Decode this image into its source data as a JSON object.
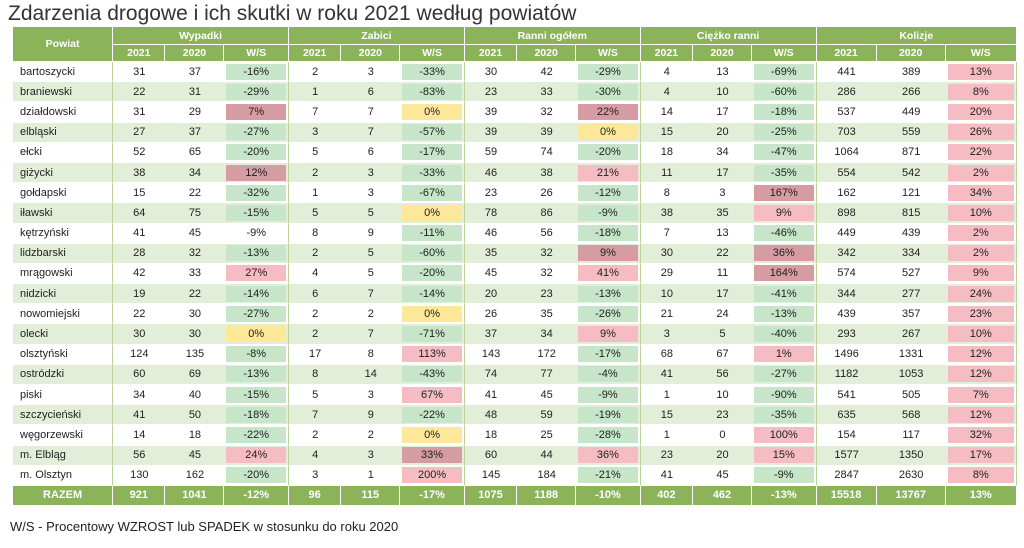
{
  "title": "Zdarzenia drogowe i ich skutki w roku 2021 według powiatów",
  "footnote": "W/S - Procentowy WZROST lub SPADEK w stosunku do roku 2020",
  "colors": {
    "header_green": "#8bb35a",
    "row_stripe": "#e2eed8",
    "decrease_green": "#c6e5c9",
    "increase_red": "#f6bcc4",
    "no_change_yellow": "#fde89a",
    "large_increase_red": "#d59da3"
  },
  "header": {
    "powiat": "Powiat",
    "groups": [
      "Wypadki",
      "Zabici",
      "Ranni ogółem",
      "Ciężko ranni",
      "Kolizje"
    ],
    "subheaders": [
      "2021",
      "2020",
      "W/S"
    ]
  },
  "rows": [
    {
      "name": "bartoszycki",
      "cells": [
        [
          "31",
          "37",
          "-16%",
          "g"
        ],
        [
          "2",
          "3",
          "-33%",
          "g"
        ],
        [
          "30",
          "42",
          "-29%",
          "g"
        ],
        [
          "4",
          "13",
          "-69%",
          "g"
        ],
        [
          "441",
          "389",
          "13%",
          "r"
        ]
      ]
    },
    {
      "name": "braniewski",
      "cells": [
        [
          "22",
          "31",
          "-29%",
          "g"
        ],
        [
          "1",
          "6",
          "-83%",
          "g"
        ],
        [
          "23",
          "33",
          "-30%",
          "g"
        ],
        [
          "4",
          "10",
          "-60%",
          "g"
        ],
        [
          "286",
          "266",
          "8%",
          "r"
        ]
      ]
    },
    {
      "name": "działdowski",
      "cells": [
        [
          "31",
          "29",
          "7%",
          "d"
        ],
        [
          "7",
          "7",
          "0%",
          "y"
        ],
        [
          "39",
          "32",
          "22%",
          "d"
        ],
        [
          "14",
          "17",
          "-18%",
          "g"
        ],
        [
          "537",
          "449",
          "20%",
          "r"
        ]
      ]
    },
    {
      "name": "elbląski",
      "cells": [
        [
          "27",
          "37",
          "-27%",
          "g"
        ],
        [
          "3",
          "7",
          "-57%",
          "g"
        ],
        [
          "39",
          "39",
          "0%",
          "y"
        ],
        [
          "15",
          "20",
          "-25%",
          "g"
        ],
        [
          "703",
          "559",
          "26%",
          "r"
        ]
      ]
    },
    {
      "name": "ełcki",
      "cells": [
        [
          "52",
          "65",
          "-20%",
          "g"
        ],
        [
          "5",
          "6",
          "-17%",
          "g"
        ],
        [
          "59",
          "74",
          "-20%",
          "g"
        ],
        [
          "18",
          "34",
          "-47%",
          "g"
        ],
        [
          "1064",
          "871",
          "22%",
          "r"
        ]
      ]
    },
    {
      "name": "giżycki",
      "cells": [
        [
          "38",
          "34",
          "12%",
          "d"
        ],
        [
          "2",
          "3",
          "-33%",
          "g"
        ],
        [
          "46",
          "38",
          "21%",
          "r"
        ],
        [
          "11",
          "17",
          "-35%",
          "g"
        ],
        [
          "554",
          "542",
          "2%",
          "r"
        ]
      ]
    },
    {
      "name": "gołdapski",
      "cells": [
        [
          "15",
          "22",
          "-32%",
          "g"
        ],
        [
          "1",
          "3",
          "-67%",
          "g"
        ],
        [
          "23",
          "26",
          "-12%",
          "g"
        ],
        [
          "8",
          "3",
          "167%",
          "d"
        ],
        [
          "162",
          "121",
          "34%",
          "r"
        ]
      ]
    },
    {
      "name": "iławski",
      "cells": [
        [
          "64",
          "75",
          "-15%",
          "g"
        ],
        [
          "5",
          "5",
          "0%",
          "y"
        ],
        [
          "78",
          "86",
          "-9%",
          "g"
        ],
        [
          "38",
          "35",
          "9%",
          "r"
        ],
        [
          "898",
          "815",
          "10%",
          "r"
        ]
      ]
    },
    {
      "name": "kętrzyński",
      "cells": [
        [
          "41",
          "45",
          "-9%",
          ""
        ],
        [
          "8",
          "9",
          "-11%",
          "g"
        ],
        [
          "46",
          "56",
          "-18%",
          "g"
        ],
        [
          "7",
          "13",
          "-46%",
          "g"
        ],
        [
          "449",
          "439",
          "2%",
          "r"
        ]
      ]
    },
    {
      "name": "lidzbarski",
      "cells": [
        [
          "28",
          "32",
          "-13%",
          "g"
        ],
        [
          "2",
          "5",
          "-60%",
          "g"
        ],
        [
          "35",
          "32",
          "9%",
          "d"
        ],
        [
          "30",
          "22",
          "36%",
          "d"
        ],
        [
          "342",
          "334",
          "2%",
          "r"
        ]
      ]
    },
    {
      "name": "mrągowski",
      "cells": [
        [
          "42",
          "33",
          "27%",
          "r"
        ],
        [
          "4",
          "5",
          "-20%",
          "g"
        ],
        [
          "45",
          "32",
          "41%",
          "r"
        ],
        [
          "29",
          "11",
          "164%",
          "d"
        ],
        [
          "574",
          "527",
          "9%",
          "r"
        ]
      ]
    },
    {
      "name": "nidzicki",
      "cells": [
        [
          "19",
          "22",
          "-14%",
          "g"
        ],
        [
          "6",
          "7",
          "-14%",
          "g"
        ],
        [
          "20",
          "23",
          "-13%",
          "g"
        ],
        [
          "10",
          "17",
          "-41%",
          "g"
        ],
        [
          "344",
          "277",
          "24%",
          "r"
        ]
      ]
    },
    {
      "name": "nowomiejski",
      "cells": [
        [
          "22",
          "30",
          "-27%",
          "g"
        ],
        [
          "2",
          "2",
          "0%",
          "y"
        ],
        [
          "26",
          "35",
          "-26%",
          "g"
        ],
        [
          "21",
          "24",
          "-13%",
          "g"
        ],
        [
          "439",
          "357",
          "23%",
          "r"
        ]
      ]
    },
    {
      "name": "olecki",
      "cells": [
        [
          "30",
          "30",
          "0%",
          "y"
        ],
        [
          "2",
          "7",
          "-71%",
          "g"
        ],
        [
          "37",
          "34",
          "9%",
          "r"
        ],
        [
          "3",
          "5",
          "-40%",
          "g"
        ],
        [
          "293",
          "267",
          "10%",
          "r"
        ]
      ]
    },
    {
      "name": "olsztyński",
      "cells": [
        [
          "124",
          "135",
          "-8%",
          "g"
        ],
        [
          "17",
          "8",
          "113%",
          "r"
        ],
        [
          "143",
          "172",
          "-17%",
          "g"
        ],
        [
          "68",
          "67",
          "1%",
          "r"
        ],
        [
          "1496",
          "1331",
          "12%",
          "r"
        ]
      ]
    },
    {
      "name": "ostródzki",
      "cells": [
        [
          "60",
          "69",
          "-13%",
          "g"
        ],
        [
          "8",
          "14",
          "-43%",
          "g"
        ],
        [
          "74",
          "77",
          "-4%",
          "g"
        ],
        [
          "41",
          "56",
          "-27%",
          "g"
        ],
        [
          "1182",
          "1053",
          "12%",
          "r"
        ]
      ]
    },
    {
      "name": "piski",
      "cells": [
        [
          "34",
          "40",
          "-15%",
          "g"
        ],
        [
          "5",
          "3",
          "67%",
          "r"
        ],
        [
          "41",
          "45",
          "-9%",
          "g"
        ],
        [
          "1",
          "10",
          "-90%",
          "g"
        ],
        [
          "541",
          "505",
          "7%",
          "r"
        ]
      ]
    },
    {
      "name": "szczycieński",
      "cells": [
        [
          "41",
          "50",
          "-18%",
          "g"
        ],
        [
          "7",
          "9",
          "-22%",
          "g"
        ],
        [
          "48",
          "59",
          "-19%",
          "g"
        ],
        [
          "15",
          "23",
          "-35%",
          "g"
        ],
        [
          "635",
          "568",
          "12%",
          "r"
        ]
      ]
    },
    {
      "name": "węgorzewski",
      "cells": [
        [
          "14",
          "18",
          "-22%",
          "g"
        ],
        [
          "2",
          "2",
          "0%",
          "y"
        ],
        [
          "18",
          "25",
          "-28%",
          "g"
        ],
        [
          "1",
          "0",
          "100%",
          "r"
        ],
        [
          "154",
          "117",
          "32%",
          "r"
        ]
      ]
    },
    {
      "name": "m. Elbląg",
      "cells": [
        [
          "56",
          "45",
          "24%",
          "r"
        ],
        [
          "4",
          "3",
          "33%",
          "d"
        ],
        [
          "60",
          "44",
          "36%",
          "r"
        ],
        [
          "23",
          "20",
          "15%",
          "r"
        ],
        [
          "1577",
          "1350",
          "17%",
          "r"
        ]
      ]
    },
    {
      "name": "m. Olsztyn",
      "cells": [
        [
          "130",
          "162",
          "-20%",
          "g"
        ],
        [
          "3",
          "1",
          "200%",
          "r"
        ],
        [
          "145",
          "184",
          "-21%",
          "g"
        ],
        [
          "41",
          "45",
          "-9%",
          "g"
        ],
        [
          "2847",
          "2630",
          "8%",
          "r"
        ]
      ]
    }
  ],
  "total": {
    "name": "RAZEM",
    "cells": [
      [
        "921",
        "1041",
        "-12%"
      ],
      [
        "96",
        "115",
        "-17%"
      ],
      [
        "1075",
        "1188",
        "-10%"
      ],
      [
        "402",
        "462",
        "-13%"
      ],
      [
        "15518",
        "13767",
        "13%"
      ]
    ]
  }
}
